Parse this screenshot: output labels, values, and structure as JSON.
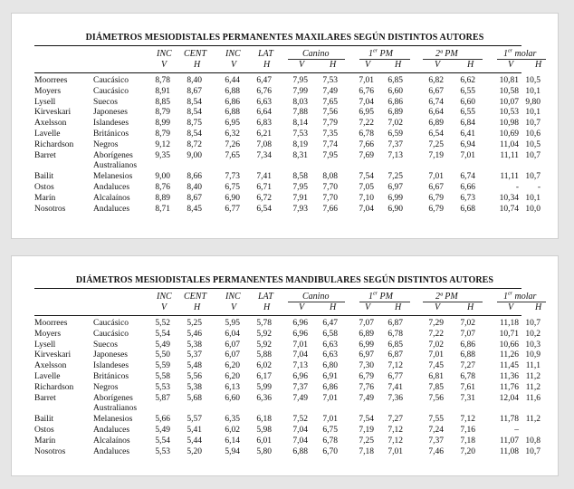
{
  "tables": [
    {
      "id": "max",
      "title": "DIÁMETROS MESIODISTALES PERMANENTES MAXILARES SEGÚN DISTINTOS AUTORES",
      "headers": {
        "inc_v_top": "INC",
        "inc_v_sub": "V",
        "cent_top": "CENT",
        "cent_sub": "H",
        "inc_lat_top": "INC",
        "inc_lat_sub": "V",
        "lat_top": "LAT",
        "lat_sub": "H",
        "canino": "Canino",
        "canino_v": "V",
        "canino_h": "H",
        "pm1": "1",
        "pm1_sup": "er",
        "pm1_suffix": " PM",
        "pm1_v": "V",
        "pm1_h": "H",
        "pm2": "2ª PM",
        "pm2_v": "V",
        "pm2_h": "H",
        "molar": "1",
        "molar_sup": "er",
        "molar_suffix": " molar",
        "molar_v": "V",
        "molar_h": "H"
      },
      "rows": [
        {
          "author": "Moorrees",
          "population": "Caucásico",
          "values": [
            "8,78",
            "8,40",
            "6,44",
            "6,47",
            "7,95",
            "7,53",
            "7,01",
            "6,85",
            "6,82",
            "6,62",
            "10,81",
            "10,5"
          ]
        },
        {
          "author": "Moyers",
          "population": "Caucásico",
          "values": [
            "8,91",
            "8,67",
            "6,88",
            "6,76",
            "7,99",
            "7,49",
            "6,76",
            "6,60",
            "6,67",
            "6,55",
            "10,58",
            "10,1"
          ]
        },
        {
          "author": "Lysell",
          "population": "Suecos",
          "values": [
            "8,85",
            "8,54",
            "6,86",
            "6,63",
            "8,03",
            "7,65",
            "7,04",
            "6,86",
            "6,74",
            "6,60",
            "10,07",
            "9,80"
          ]
        },
        {
          "author": "Kirveskari",
          "population": "Japoneses",
          "values": [
            "8,79",
            "8,54",
            "6,88",
            "6,64",
            "7,88",
            "7,56",
            "6,95",
            "6,89",
            "6,64",
            "6,55",
            "10,53",
            "10,1"
          ]
        },
        {
          "author": "Axelsson",
          "population": "Islandeses",
          "values": [
            "8,99",
            "8,75",
            "6,95",
            "6,83",
            "8,14",
            "7,79",
            "7,22",
            "7,02",
            "6,89",
            "6,84",
            "10,98",
            "10,7"
          ]
        },
        {
          "author": "Lavelle",
          "population": "Británicos",
          "values": [
            "8,79",
            "8,54",
            "6,32",
            "6,21",
            "7,53",
            "7,35",
            "6,78",
            "6,59",
            "6,54",
            "6,41",
            "10,69",
            "10,6"
          ]
        },
        {
          "author": "Richardson",
          "population": "Negros",
          "values": [
            "9,12",
            "8,72",
            "7,26",
            "7,08",
            "8,19",
            "7,74",
            "7,66",
            "7,37",
            "7,25",
            "6,94",
            "11,04",
            "10,5"
          ]
        },
        {
          "author": "Barret",
          "population": "Aborígenes",
          "values": [
            "9,35",
            "9,00",
            "7,65",
            "7,34",
            "8,31",
            "7,95",
            "7,69",
            "7,13",
            "7,19",
            "7,01",
            "11,11",
            "10,7"
          ]
        },
        {
          "author": "",
          "population": "Australianos",
          "values": [
            "",
            "",
            "",
            "",
            "",
            "",
            "",
            "",
            "",
            "",
            "",
            ""
          ]
        },
        {
          "author": "Bailit",
          "population": "Melanesios",
          "values": [
            "9,00",
            "8,66",
            "7,73",
            "7,41",
            "8,58",
            "8,08",
            "7,54",
            "7,25",
            "7,01",
            "6,74",
            "11,11",
            "10,7"
          ]
        },
        {
          "author": "Ostos",
          "population": "Andaluces",
          "values": [
            "8,76",
            "8,40",
            "6,75",
            "6,71",
            "7,95",
            "7,70",
            "7,05",
            "6,97",
            "6,67",
            "6,66",
            "-",
            "-"
          ]
        },
        {
          "author": "Marín",
          "population": "Alcalaínos",
          "values": [
            "8,89",
            "8,67",
            "6,90",
            "6,72",
            "7,91",
            "7,70",
            "7,10",
            "6,99",
            "6,79",
            "6,73",
            "10,34",
            "10,1"
          ]
        },
        {
          "author": "Nosotros",
          "population": "Andaluces",
          "values": [
            "8,71",
            "8,45",
            "6,77",
            "6,54",
            "7,93",
            "7,66",
            "7,04",
            "6,90",
            "6,79",
            "6,68",
            "10,74",
            "10,0"
          ]
        }
      ]
    },
    {
      "id": "man",
      "title": "DIÁMETROS MESIODISTALES PERMANENTES MANDIBULARES SEGÚN DISTINTOS AUTORES",
      "headers": {
        "inc_v_top": "INC",
        "inc_v_sub": "V",
        "cent_top": "CENT",
        "cent_sub": "H",
        "inc_lat_top": "INC",
        "inc_lat_sub": "V",
        "lat_top": "LAT",
        "lat_sub": "H",
        "canino": "Canino",
        "canino_v": "V",
        "canino_h": "H",
        "pm1": "1",
        "pm1_sup": "er",
        "pm1_suffix": " PM",
        "pm1_v": "V",
        "pm1_h": "H",
        "pm2": "2ª PM",
        "pm2_v": "V",
        "pm2_h": "H",
        "molar": "1",
        "molar_sup": "er",
        "molar_suffix": " molar",
        "molar_v": "V",
        "molar_h": "H"
      },
      "rows": [
        {
          "author": "Moorrees",
          "population": "Caucásico",
          "values": [
            "5,52",
            "5,25",
            "5,95",
            "5,78",
            "6,96",
            "6,47",
            "7,07",
            "6,87",
            "7,29",
            "7,02",
            "11,18",
            "10,7"
          ]
        },
        {
          "author": "Moyers",
          "population": "Caucásico",
          "values": [
            "5,54",
            "5,46",
            "6,04",
            "5,92",
            "6,96",
            "6,58",
            "6,89",
            "6,78",
            "7,22",
            "7,07",
            "10,71",
            "10,2"
          ]
        },
        {
          "author": "Lysell",
          "population": "Suecos",
          "values": [
            "5,49",
            "5,38",
            "6,07",
            "5,92",
            "7,01",
            "6,63",
            "6,99",
            "6,85",
            "7,02",
            "6,86",
            "10,66",
            "10,3"
          ]
        },
        {
          "author": "Kirveskari",
          "population": "Japoneses",
          "values": [
            "5,50",
            "5,37",
            "6,07",
            "5,88",
            "7,04",
            "6,63",
            "6,97",
            "6,87",
            "7,01",
            "6,88",
            "11,26",
            "10,9"
          ]
        },
        {
          "author": "Axelsson",
          "population": "Islandeses",
          "values": [
            "5,59",
            "5,48",
            "6,20",
            "6,02",
            "7,13",
            "6,80",
            "7,30",
            "7,12",
            "7,45",
            "7,27",
            "11,45",
            "11,1"
          ]
        },
        {
          "author": "Lavelle",
          "population": "Británicos",
          "values": [
            "5,58",
            "5,56",
            "6,20",
            "6,17",
            "6,96",
            "6,91",
            "6,79",
            "6,77",
            "6,81",
            "6,78",
            "11,36",
            "11,2"
          ]
        },
        {
          "author": "Richardson",
          "population": "Negros",
          "values": [
            "5,53",
            "5,38",
            "6,13",
            "5,99",
            "7,37",
            "6,86",
            "7,76",
            "7,41",
            "7,85",
            "7,61",
            "11,76",
            "11,2"
          ]
        },
        {
          "author": "Barret",
          "population": "Aborígenes",
          "values": [
            "5,87",
            "5,68",
            "6,60",
            "6,36",
            "7,49",
            "7,01",
            "7,49",
            "7,36",
            "7,56",
            "7,31",
            "12,04",
            "11,6"
          ]
        },
        {
          "author": "",
          "population": "Australianos",
          "values": [
            "",
            "",
            "",
            "",
            "",
            "",
            "",
            "",
            "",
            "",
            "",
            ""
          ]
        },
        {
          "author": "Bailit",
          "population": "Melanesios",
          "values": [
            "5,66",
            "5,57",
            "6,35",
            "6,18",
            "7,52",
            "7,01",
            "7,54",
            "7,27",
            "7,55",
            "7,12",
            "11,78",
            "11,2"
          ]
        },
        {
          "author": "Ostos",
          "population": "Andaluces",
          "values": [
            "5,49",
            "5,41",
            "6,02",
            "5,98",
            "7,04",
            "6,75",
            "7,19",
            "7,12",
            "7,24",
            "7,16",
            "–",
            ""
          ]
        },
        {
          "author": "Marín",
          "population": "Alcalaínos",
          "values": [
            "5,54",
            "5,44",
            "6,14",
            "6,01",
            "7,04",
            "6,78",
            "7,25",
            "7,12",
            "7,37",
            "7,18",
            "11,07",
            "10,8"
          ]
        },
        {
          "author": "Nosotros",
          "population": "Andaluces",
          "values": [
            "5,53",
            "5,20",
            "5,94",
            "5,80",
            "6,88",
            "6,70",
            "7,18",
            "7,01",
            "7,46",
            "7,20",
            "11,08",
            "10,7"
          ]
        }
      ]
    }
  ]
}
